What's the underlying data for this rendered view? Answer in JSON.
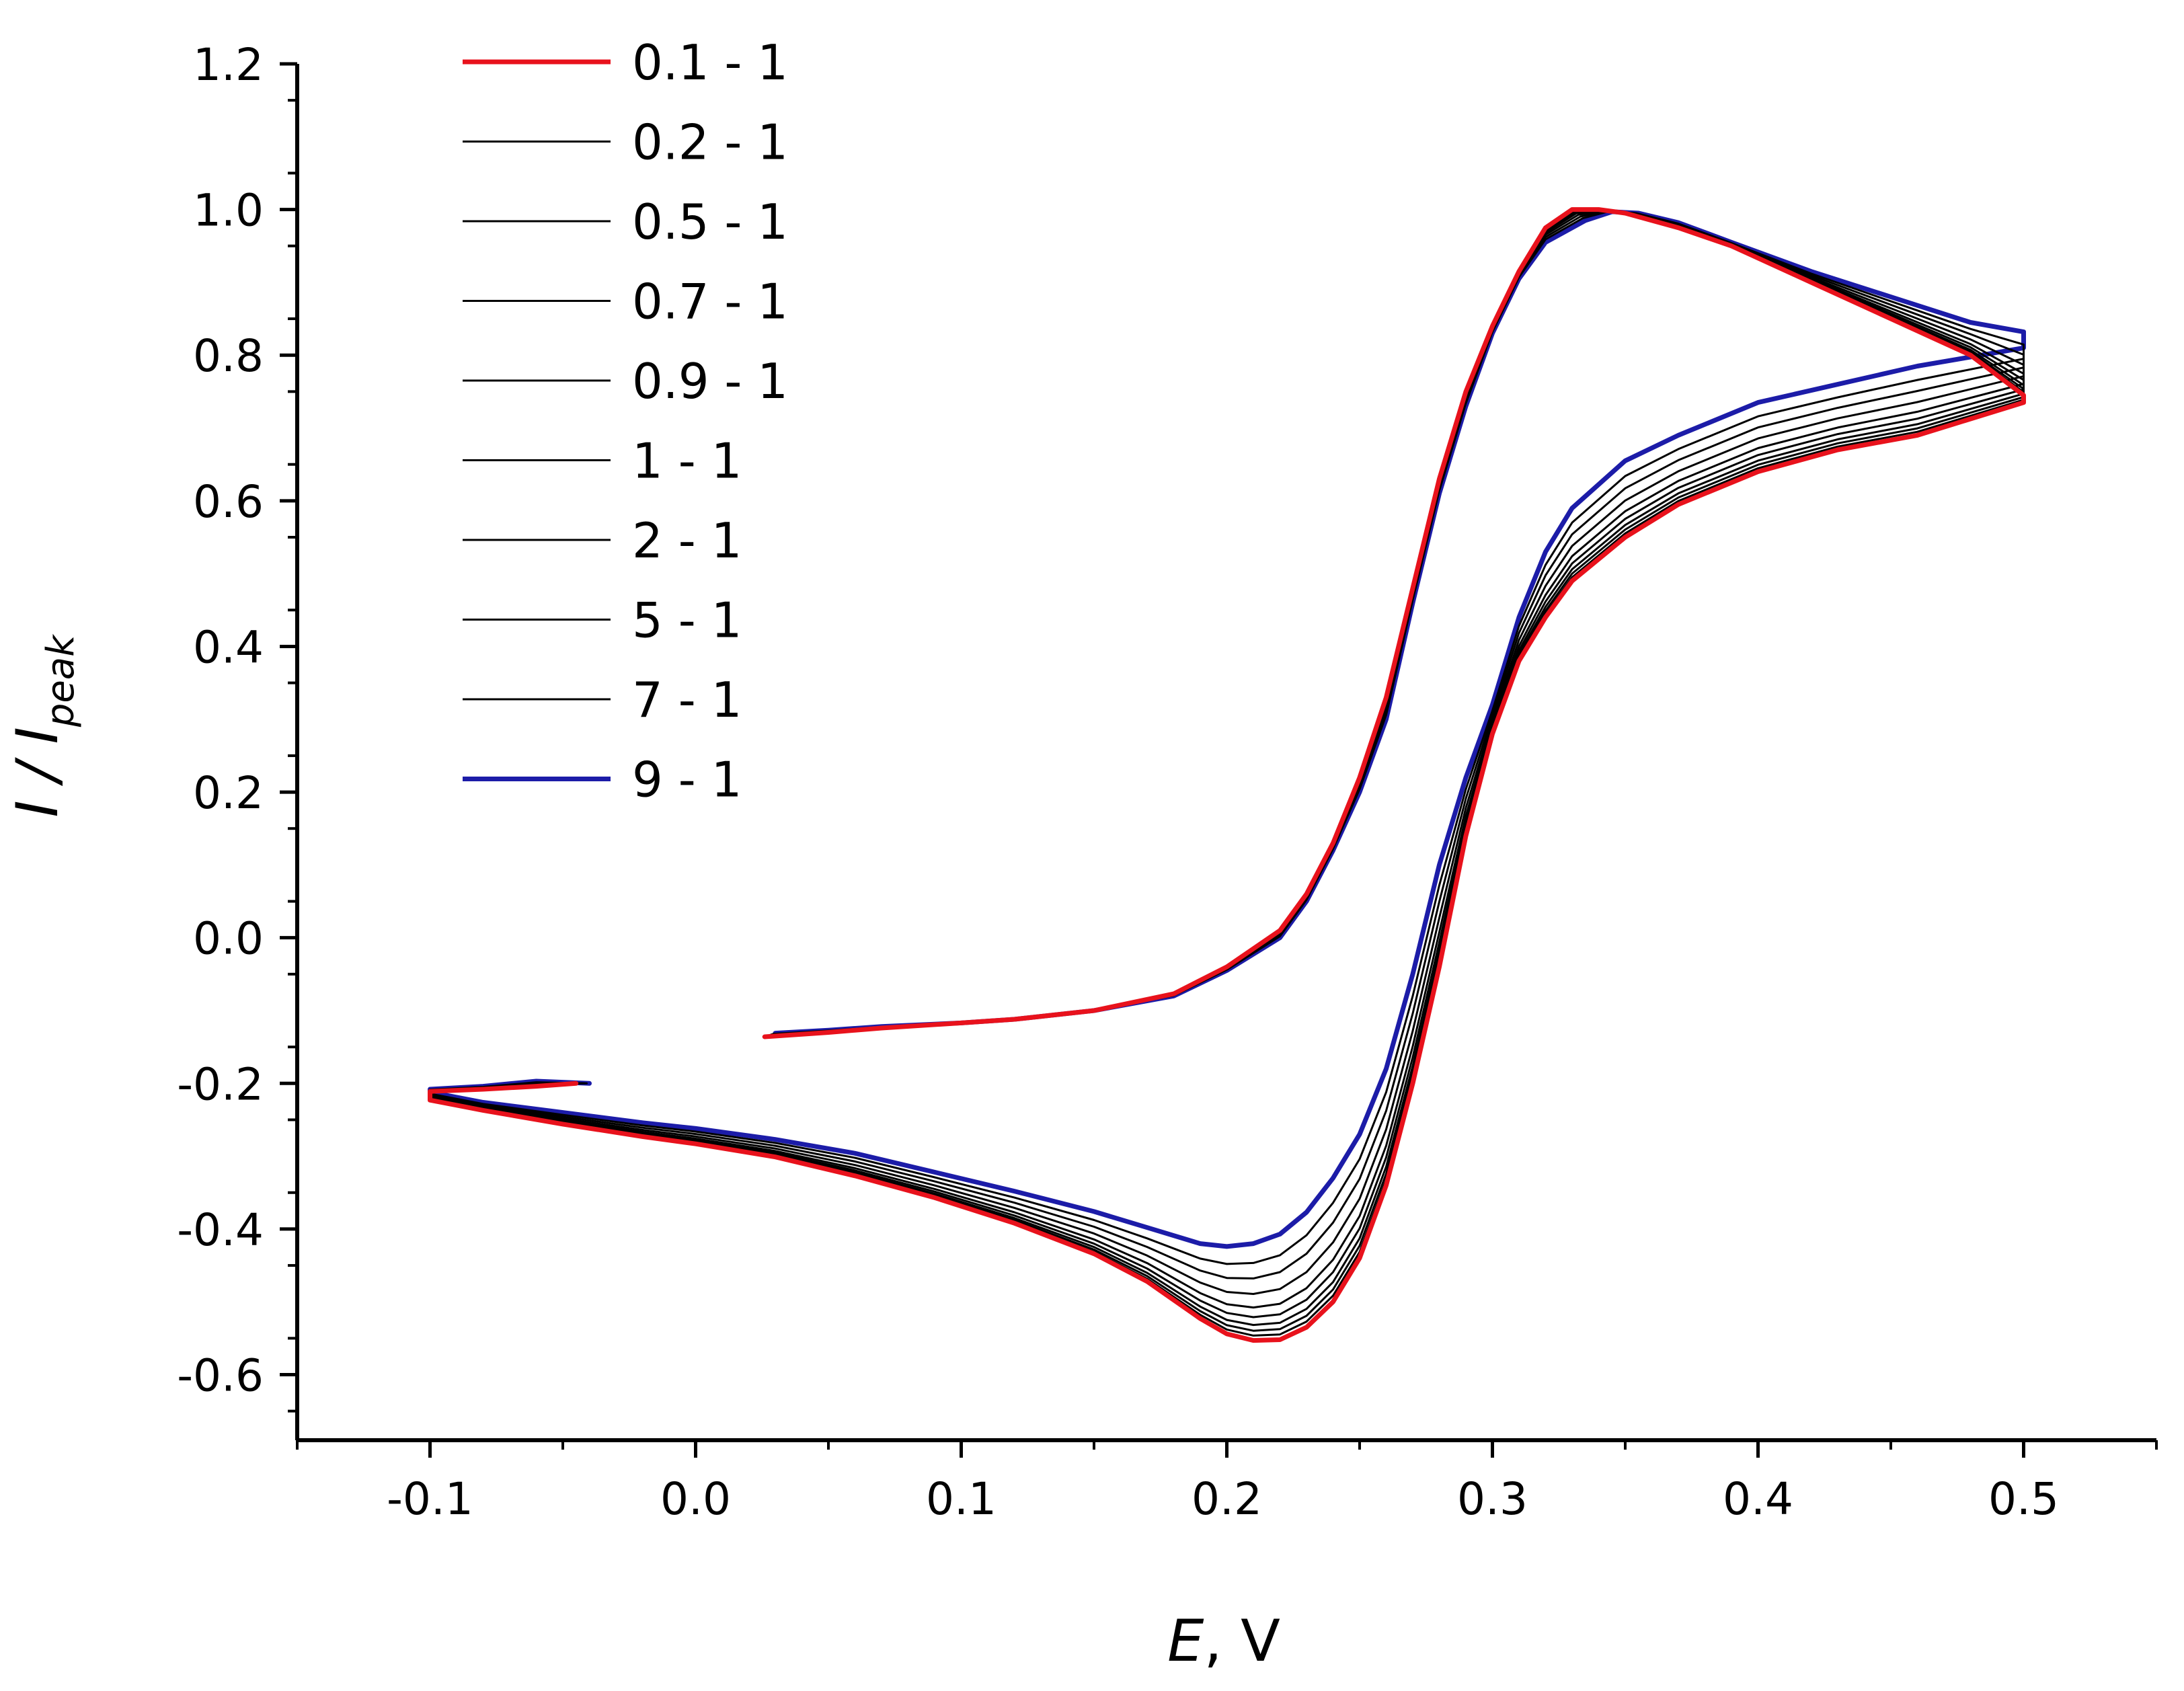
{
  "chart_data": {
    "type": "line",
    "title": "",
    "xlabel": {
      "var": "E",
      "unit": ", V"
    },
    "ylabel": {
      "var": "I / I",
      "sub": "peak"
    },
    "xlim": [
      -0.15,
      0.55
    ],
    "ylim": [
      -0.69,
      1.2
    ],
    "x_ticks": [
      -0.1,
      0.0,
      0.1,
      0.2,
      0.3,
      0.4,
      0.5
    ],
    "x_tick_labels": [
      "-0.1",
      "0.0",
      "0.1",
      "0.2",
      "0.3",
      "0.4",
      "0.5"
    ],
    "y_ticks": [
      1.2,
      1.0,
      0.8,
      0.6,
      0.4,
      0.2,
      0.0,
      -0.2,
      -0.4,
      -0.6
    ],
    "y_tick_labels": [
      "1.2",
      "1.0",
      "0.8",
      "0.6",
      "0.4",
      "0.2",
      "0.0",
      "-0.2",
      "-0.4",
      "-0.6"
    ],
    "legend_position": "top-left",
    "series": [
      {
        "name": "0.1 - 1",
        "color": "#e8121c",
        "t": 0.0
      },
      {
        "name": "0.2 - 1",
        "color": "#000000",
        "t": 0.05
      },
      {
        "name": "0.5 - 1",
        "color": "#000000",
        "t": 0.1
      },
      {
        "name": "0.7 - 1",
        "color": "#000000",
        "t": 0.16
      },
      {
        "name": "0.9 - 1",
        "color": "#000000",
        "t": 0.24
      },
      {
        "name": "1 - 1",
        "color": "#000000",
        "t": 0.34
      },
      {
        "name": "2 - 1",
        "color": "#000000",
        "t": 0.48
      },
      {
        "name": "5 - 1",
        "color": "#000000",
        "t": 0.64
      },
      {
        "name": "7 - 1",
        "color": "#000000",
        "t": 0.8
      },
      {
        "name": "9 - 1",
        "color": "#1c1ca8",
        "t": 1.0
      }
    ],
    "curve_first": {
      "points": [
        [
          -0.045,
          -0.2
        ],
        [
          -0.06,
          -0.204
        ],
        [
          -0.08,
          -0.208
        ],
        [
          -0.1,
          -0.211
        ],
        [
          -0.1,
          -0.223
        ],
        [
          -0.08,
          -0.237
        ],
        [
          -0.05,
          -0.256
        ],
        [
          -0.02,
          -0.273
        ],
        [
          0.0,
          -0.283
        ],
        [
          0.03,
          -0.301
        ],
        [
          0.06,
          -0.327
        ],
        [
          0.09,
          -0.357
        ],
        [
          0.12,
          -0.392
        ],
        [
          0.15,
          -0.434
        ],
        [
          0.17,
          -0.472
        ],
        [
          0.19,
          -0.523
        ],
        [
          0.2,
          -0.544
        ],
        [
          0.21,
          -0.553
        ],
        [
          0.22,
          -0.552
        ],
        [
          0.23,
          -0.535
        ],
        [
          0.24,
          -0.5
        ],
        [
          0.25,
          -0.44
        ],
        [
          0.26,
          -0.34
        ],
        [
          0.27,
          -0.2
        ],
        [
          0.28,
          -0.04
        ],
        [
          0.29,
          0.14
        ],
        [
          0.3,
          0.28
        ],
        [
          0.31,
          0.38
        ],
        [
          0.32,
          0.44
        ],
        [
          0.33,
          0.49
        ],
        [
          0.35,
          0.55
        ],
        [
          0.37,
          0.595
        ],
        [
          0.4,
          0.64
        ],
        [
          0.43,
          0.67
        ],
        [
          0.46,
          0.69
        ],
        [
          0.5,
          0.735
        ],
        [
          0.5,
          0.745
        ],
        [
          0.48,
          0.8
        ],
        [
          0.45,
          0.85
        ],
        [
          0.42,
          0.9
        ],
        [
          0.39,
          0.95
        ],
        [
          0.37,
          0.975
        ],
        [
          0.35,
          0.995
        ],
        [
          0.34,
          1.0
        ],
        [
          0.33,
          1.0
        ],
        [
          0.32,
          0.975
        ],
        [
          0.31,
          0.915
        ],
        [
          0.3,
          0.84
        ],
        [
          0.29,
          0.75
        ],
        [
          0.28,
          0.63
        ],
        [
          0.27,
          0.48
        ],
        [
          0.26,
          0.33
        ],
        [
          0.25,
          0.22
        ],
        [
          0.24,
          0.13
        ],
        [
          0.23,
          0.06
        ],
        [
          0.22,
          0.01
        ],
        [
          0.2,
          -0.04
        ],
        [
          0.18,
          -0.077
        ],
        [
          0.15,
          -0.1
        ],
        [
          0.12,
          -0.112
        ],
        [
          0.1,
          -0.117
        ],
        [
          0.07,
          -0.124
        ],
        [
          0.05,
          -0.13
        ],
        [
          0.026,
          -0.136
        ]
      ]
    },
    "curve_last": {
      "points": [
        [
          -0.04,
          -0.2
        ],
        [
          -0.06,
          -0.197
        ],
        [
          -0.08,
          -0.204
        ],
        [
          -0.1,
          -0.208
        ],
        [
          -0.1,
          -0.212
        ],
        [
          -0.08,
          -0.226
        ],
        [
          -0.05,
          -0.24
        ],
        [
          -0.02,
          -0.254
        ],
        [
          0.0,
          -0.262
        ],
        [
          0.03,
          -0.277
        ],
        [
          0.06,
          -0.296
        ],
        [
          0.09,
          -0.322
        ],
        [
          0.12,
          -0.348
        ],
        [
          0.15,
          -0.376
        ],
        [
          0.17,
          -0.398
        ],
        [
          0.19,
          -0.42
        ],
        [
          0.2,
          -0.424
        ],
        [
          0.21,
          -0.42
        ],
        [
          0.22,
          -0.407
        ],
        [
          0.23,
          -0.377
        ],
        [
          0.24,
          -0.33
        ],
        [
          0.25,
          -0.27
        ],
        [
          0.26,
          -0.18
        ],
        [
          0.27,
          -0.05
        ],
        [
          0.28,
          0.1
        ],
        [
          0.29,
          0.22
        ],
        [
          0.3,
          0.32
        ],
        [
          0.31,
          0.44
        ],
        [
          0.32,
          0.53
        ],
        [
          0.33,
          0.59
        ],
        [
          0.35,
          0.655
        ],
        [
          0.37,
          0.69
        ],
        [
          0.4,
          0.735
        ],
        [
          0.43,
          0.76
        ],
        [
          0.46,
          0.785
        ],
        [
          0.5,
          0.81
        ],
        [
          0.5,
          0.832
        ],
        [
          0.48,
          0.845
        ],
        [
          0.45,
          0.88
        ],
        [
          0.42,
          0.915
        ],
        [
          0.39,
          0.955
        ],
        [
          0.37,
          0.982
        ],
        [
          0.355,
          0.995
        ],
        [
          0.345,
          0.997
        ],
        [
          0.335,
          0.985
        ],
        [
          0.32,
          0.955
        ],
        [
          0.31,
          0.905
        ],
        [
          0.3,
          0.83
        ],
        [
          0.29,
          0.73
        ],
        [
          0.28,
          0.61
        ],
        [
          0.27,
          0.46
        ],
        [
          0.26,
          0.3
        ],
        [
          0.25,
          0.2
        ],
        [
          0.24,
          0.12
        ],
        [
          0.23,
          0.05
        ],
        [
          0.22,
          0.0
        ],
        [
          0.2,
          -0.045
        ],
        [
          0.18,
          -0.08
        ],
        [
          0.15,
          -0.1
        ],
        [
          0.12,
          -0.112
        ],
        [
          0.1,
          -0.117
        ],
        [
          0.07,
          -0.122
        ],
        [
          0.05,
          -0.127
        ],
        [
          0.03,
          -0.131
        ]
      ]
    }
  }
}
